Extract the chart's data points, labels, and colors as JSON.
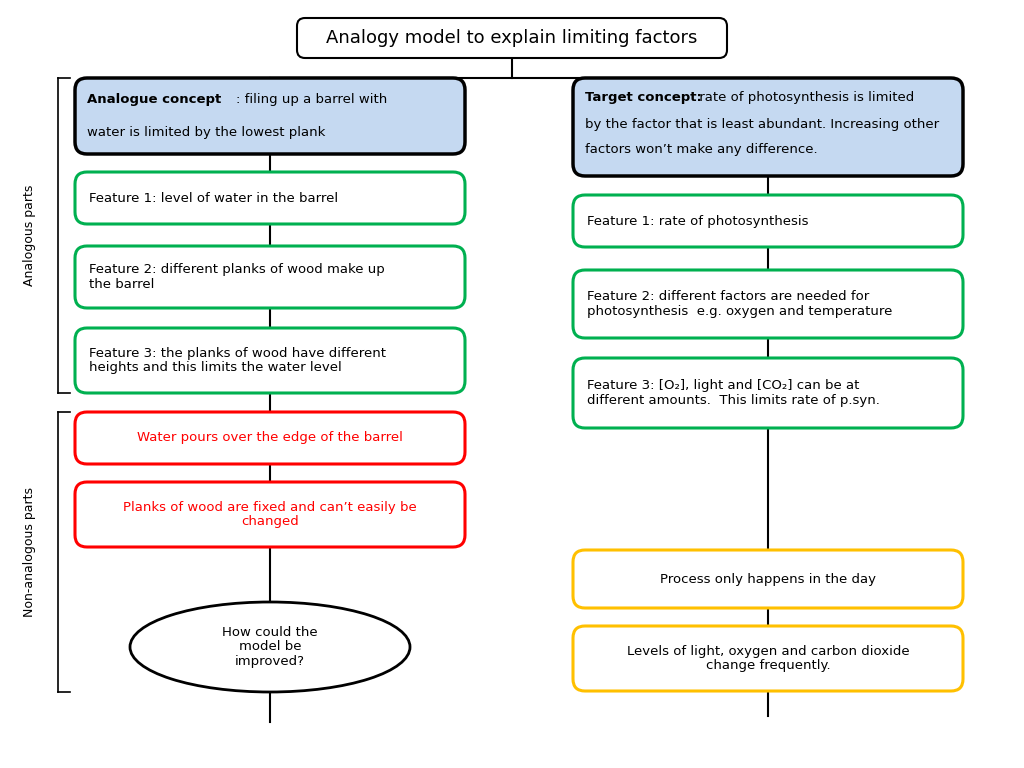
{
  "title": "Analogy model to explain limiting factors",
  "background_color": "#ffffff",
  "left_header_bold": "Analogue concept",
  "left_header_normal": ": filing up a barrel with\nwater is limited by the lowest plank",
  "right_header_bold": "Target concept:",
  "right_header_line1": " rate of photosynthesis is limited",
  "right_header_line2": "by the factor that is least abundant. Increasing other",
  "right_header_line3": "factors won’t make any difference.",
  "header_bg": "#c5d9f1",
  "header_border": "#000000",
  "green_boxes_left": [
    "Feature 1: level of water in the barrel",
    "Feature 2: different planks of wood make up\nthe barrel",
    "Feature 3: the planks of wood have different\nheights and this limits the water level"
  ],
  "green_boxes_right": [
    "Feature 1: rate of photosynthesis",
    "Feature 2: different factors are needed for\nphotosynthesis  e.g. oxygen and temperature",
    "Feature 3: [O₂], light and [CO₂] can be at\ndifferent amounts.  This limits rate of p.syn."
  ],
  "green_border": "#00b050",
  "red_boxes_left": [
    "Water pours over the edge of the barrel",
    "Planks of wood are fixed and can’t easily be\nchanged"
  ],
  "red_border": "#ff0000",
  "red_text": "#ff0000",
  "yellow_boxes_right": [
    "Process only happens in the day",
    "Levels of light, oxygen and carbon dioxide\nchange frequently."
  ],
  "yellow_border": "#ffc000",
  "ellipse_text": "How could the\nmodel be\nimproved?",
  "side_label_analogous": "Analogous parts",
  "side_label_nonanalogous": "Non-analogous parts",
  "font_size_title": 13,
  "font_size_box": 9.5,
  "font_size_side": 9
}
